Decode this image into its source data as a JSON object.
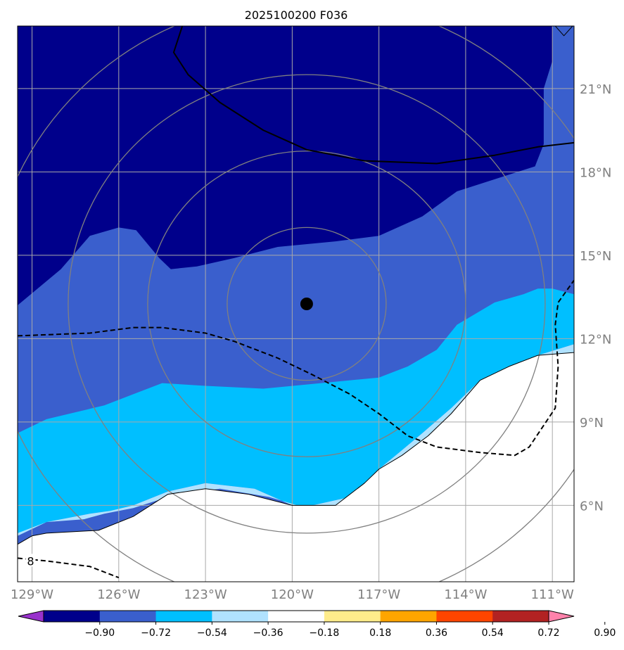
{
  "chart_data": {
    "type": "heatmap",
    "title": "2025100200 F036",
    "lon_range": [
      -129.5,
      -110.25
    ],
    "lat_range": [
      3.25,
      23.25
    ],
    "lon_ticks": [
      -129,
      -126,
      -123,
      -120,
      -117,
      -114,
      -111
    ],
    "lon_tick_labels": [
      "129°W",
      "126°W",
      "123°W",
      "120°W",
      "117°W",
      "114°W",
      "111°W"
    ],
    "lat_ticks": [
      6,
      9,
      12,
      15,
      18,
      21
    ],
    "lat_tick_labels": [
      "6°N",
      "9°N",
      "12°N",
      "15°N",
      "18°N",
      "21°N"
    ],
    "grid": true,
    "colorbar": {
      "levels": [
        -0.9,
        -0.72,
        -0.54,
        -0.36,
        -0.18,
        0.18,
        0.36,
        0.54,
        0.72,
        0.9
      ],
      "tick_labels": [
        "−0.90",
        "−0.72",
        "−0.54",
        "−0.36",
        "−0.18",
        "0.18",
        "0.36",
        "0.54",
        "0.72",
        "0.90"
      ],
      "colors": [
        "#9932cc",
        "#00008b",
        "#3a5fcd",
        "#00bfff",
        "#b0e2ff",
        "#ffffff",
        "#ffec8b",
        "#ffa500",
        "#ff4500",
        "#b22222",
        "#ff82ab"
      ],
      "extend": "both"
    },
    "storm_center": {
      "lon": -119.5,
      "lat": 13.25
    },
    "range_rings_deg": [
      2.75,
      5.5,
      8.25,
      11.0
    ],
    "filled_regions": [
      {
        "level_index": 1,
        "color": "#00008b",
        "polygon": [
          [
            -129.5,
            23.25
          ],
          [
            -111.0,
            23.25
          ],
          [
            -111.0,
            22.0
          ],
          [
            -111.3,
            21.0
          ],
          [
            -111.3,
            19.0
          ],
          [
            -111.6,
            18.2
          ],
          [
            -112.5,
            17.9
          ],
          [
            -114.3,
            17.3
          ],
          [
            -115.5,
            16.4
          ],
          [
            -117.0,
            15.7
          ],
          [
            -118.5,
            15.5
          ],
          [
            -120.5,
            15.3
          ],
          [
            -122.0,
            14.9
          ],
          [
            -123.3,
            14.6
          ],
          [
            -124.2,
            14.5
          ],
          [
            -124.6,
            14.9
          ],
          [
            -125.4,
            15.9
          ],
          [
            -126.0,
            16.0
          ],
          [
            -127.0,
            15.7
          ],
          [
            -128.0,
            14.5
          ],
          [
            -129.5,
            13.2
          ]
        ]
      },
      {
        "level_index": 3,
        "color": "#00bfff",
        "polygon": [
          [
            -129.5,
            8.6
          ],
          [
            -128.5,
            9.1
          ],
          [
            -126.5,
            9.6
          ],
          [
            -125.5,
            10.0
          ],
          [
            -124.5,
            10.4
          ],
          [
            -123.0,
            10.3
          ],
          [
            -121.0,
            10.2
          ],
          [
            -119.0,
            10.4
          ],
          [
            -117.0,
            10.6
          ],
          [
            -116.0,
            11.0
          ],
          [
            -115.0,
            11.6
          ],
          [
            -114.3,
            12.5
          ],
          [
            -113.0,
            13.3
          ],
          [
            -112.0,
            13.6
          ],
          [
            -111.5,
            13.8
          ],
          [
            -111.0,
            13.8
          ],
          [
            -110.25,
            13.6
          ],
          [
            -110.25,
            11.8
          ],
          [
            -111.5,
            11.4
          ],
          [
            -112.5,
            11.0
          ],
          [
            -113.5,
            10.5
          ],
          [
            -114.5,
            9.5
          ],
          [
            -115.5,
            8.6
          ],
          [
            -116.3,
            7.9
          ],
          [
            -117.0,
            7.3
          ],
          [
            -118.0,
            6.3
          ],
          [
            -119.3,
            6.0
          ],
          [
            -120.0,
            6.0
          ],
          [
            -121.3,
            6.6
          ],
          [
            -123.0,
            6.8
          ],
          [
            -124.3,
            6.5
          ],
          [
            -125.5,
            6.0
          ],
          [
            -126.3,
            5.8
          ],
          [
            -127.0,
            5.7
          ],
          [
            -128.5,
            5.4
          ],
          [
            -129.5,
            4.9
          ]
        ]
      },
      {
        "level_index": 4,
        "color": "#b0e2ff",
        "polygon": [
          [
            -129.5,
            4.9
          ],
          [
            -128.5,
            5.4
          ],
          [
            -127.0,
            5.7
          ],
          [
            -126.3,
            5.8
          ],
          [
            -125.5,
            6.0
          ],
          [
            -124.3,
            6.5
          ],
          [
            -123.0,
            6.8
          ],
          [
            -121.3,
            6.6
          ],
          [
            -120.0,
            6.0
          ],
          [
            -119.3,
            6.0
          ],
          [
            -118.0,
            6.3
          ],
          [
            -117.0,
            7.3
          ],
          [
            -116.3,
            7.9
          ],
          [
            -115.5,
            8.6
          ],
          [
            -114.5,
            9.5
          ],
          [
            -113.5,
            10.5
          ],
          [
            -112.5,
            11.0
          ],
          [
            -111.5,
            11.4
          ],
          [
            -110.25,
            11.8
          ],
          [
            -110.25,
            11.5
          ],
          [
            -111.0,
            11.4
          ],
          [
            -112.3,
            11.0
          ],
          [
            -113.5,
            10.1
          ],
          [
            -114.5,
            8.8
          ],
          [
            -115.5,
            7.8
          ],
          [
            -116.5,
            7.0
          ],
          [
            -117.3,
            6.4
          ],
          [
            -118.2,
            5.9
          ],
          [
            -119.5,
            5.9
          ],
          [
            -120.8,
            6.3
          ],
          [
            -122.5,
            6.6
          ],
          [
            -124.3,
            6.3
          ],
          [
            -125.5,
            5.9
          ],
          [
            -126.5,
            5.7
          ],
          [
            -127.2,
            5.5
          ],
          [
            -128.5,
            5.4
          ],
          [
            -129.5,
            5.0
          ]
        ]
      }
    ],
    "contours": [
      {
        "style": "solid",
        "width": 2,
        "points": [
          [
            -123.8,
            23.25
          ],
          [
            -124.1,
            22.3
          ],
          [
            -123.6,
            21.5
          ],
          [
            -122.5,
            20.5
          ],
          [
            -121.0,
            19.5
          ],
          [
            -119.5,
            18.8
          ],
          [
            -117.5,
            18.4
          ],
          [
            -115.0,
            18.3
          ],
          [
            -113.0,
            18.6
          ],
          [
            -111.5,
            18.9
          ],
          [
            -110.25,
            19.05
          ]
        ]
      },
      {
        "style": "dashed",
        "width": 2,
        "points": [
          [
            -129.5,
            12.1
          ],
          [
            -127.0,
            12.2
          ],
          [
            -125.5,
            12.4
          ],
          [
            -124.5,
            12.4
          ],
          [
            -123.0,
            12.2
          ],
          [
            -122.0,
            11.9
          ],
          [
            -120.5,
            11.3
          ],
          [
            -119.3,
            10.7
          ],
          [
            -118.0,
            10.0
          ],
          [
            -117.0,
            9.3
          ],
          [
            -116.0,
            8.5
          ],
          [
            -115.0,
            8.1
          ],
          [
            -113.5,
            7.9
          ],
          [
            -112.3,
            7.8
          ],
          [
            -111.8,
            8.1
          ],
          [
            -110.9,
            9.5
          ],
          [
            -110.8,
            11.0
          ],
          [
            -110.9,
            12.5
          ],
          [
            -110.8,
            13.3
          ],
          [
            -110.25,
            14.1
          ]
        ]
      },
      {
        "style": "dashed",
        "width": 2,
        "points": [
          [
            -129.5,
            4.1
          ],
          [
            -128.5,
            4.0
          ],
          [
            -127.0,
            3.8
          ],
          [
            -126.0,
            3.4
          ]
        ]
      },
      {
        "style": "solid",
        "width": 1,
        "points": [
          [
            -129.5,
            4.6
          ],
          [
            -129.0,
            4.9
          ],
          [
            -128.5,
            5.0
          ],
          [
            -126.7,
            5.1
          ],
          [
            -125.5,
            5.6
          ],
          [
            -124.3,
            6.4
          ],
          [
            -123.0,
            6.6
          ],
          [
            -121.5,
            6.4
          ],
          [
            -120.0,
            6.0
          ],
          [
            -118.5,
            6.0
          ],
          [
            -117.5,
            6.8
          ],
          [
            -117.0,
            7.3
          ],
          [
            -116.2,
            7.8
          ],
          [
            -115.3,
            8.5
          ],
          [
            -114.5,
            9.3
          ],
          [
            -113.5,
            10.5
          ],
          [
            -112.5,
            11.0
          ],
          [
            -111.5,
            11.4
          ],
          [
            -110.25,
            11.5
          ]
        ]
      },
      {
        "style": "solid",
        "width": 1,
        "points": [
          [
            -110.3,
            23.25
          ],
          [
            -110.6,
            22.9
          ],
          [
            -110.9,
            23.25
          ]
        ]
      }
    ],
    "contour_labels": [
      {
        "text": "8",
        "lon": -129.05,
        "lat": 4.0
      }
    ]
  }
}
